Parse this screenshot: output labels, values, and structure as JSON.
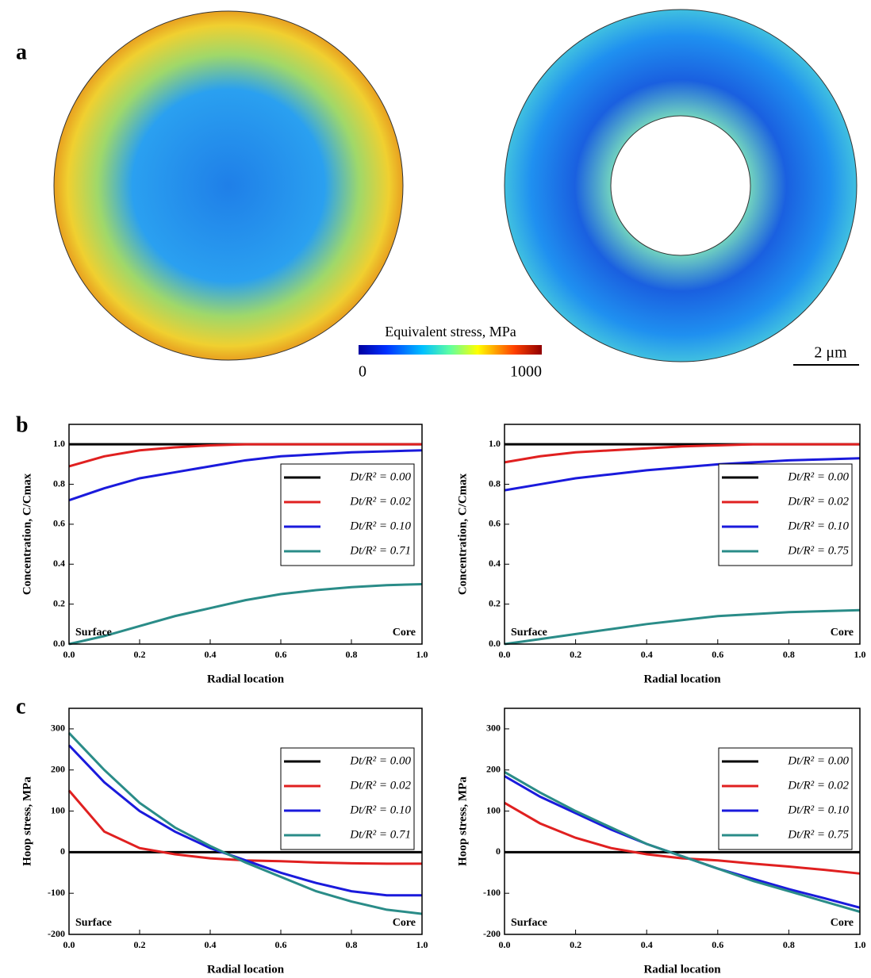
{
  "panels": [
    "a",
    "b",
    "c"
  ],
  "colorbar": {
    "title": "Equivalent stress, MPa",
    "min": 0,
    "max": 1000
  },
  "scale_bar": "2 μm",
  "chart_data": [
    {
      "type": "line",
      "xlabel": "Radial location",
      "ylabel": "Concentration, C/Cmax",
      "annotations": [
        "Surface",
        "Core"
      ],
      "legend": "right",
      "x": [
        0,
        0.1,
        0.2,
        0.3,
        0.4,
        0.5,
        0.6,
        0.7,
        0.8,
        0.9,
        1.0
      ],
      "xlim": [
        0,
        1
      ],
      "xticks": [
        {
          "value": 0,
          "label": "0.0"
        },
        {
          "value": 0.2,
          "label": "0.2"
        },
        {
          "value": 0.4,
          "label": "0.4"
        },
        {
          "value": 0.6,
          "label": "0.6"
        },
        {
          "value": 0.8,
          "label": "0.8"
        },
        {
          "value": 1,
          "label": "1.0"
        }
      ],
      "ylim": [
        0,
        1.1
      ],
      "yticks": [
        {
          "value": 0,
          "label": "0.0"
        },
        {
          "value": 0.2,
          "label": "0.2"
        },
        {
          "value": 0.4,
          "label": "0.4"
        },
        {
          "value": 0.6,
          "label": "0.6"
        },
        {
          "value": 0.8,
          "label": "0.8"
        },
        {
          "value": 1,
          "label": "1.0"
        }
      ],
      "series": [
        {
          "name": "Dt/R² = 0.00",
          "color": "#000000",
          "values": [
            1,
            1,
            1,
            1,
            1,
            1,
            1,
            1,
            1,
            1,
            1
          ]
        },
        {
          "name": "Dt/R² = 0.02",
          "color": "#e02020",
          "values": [
            0.89,
            0.94,
            0.97,
            0.985,
            0.995,
            1,
            1,
            1,
            1,
            1,
            1
          ]
        },
        {
          "name": "Dt/R² = 0.10",
          "color": "#1a1adc",
          "values": [
            0.72,
            0.78,
            0.83,
            0.86,
            0.89,
            0.92,
            0.94,
            0.95,
            0.96,
            0.965,
            0.97
          ]
        },
        {
          "name": "Dt/R² = 0.71",
          "color": "#2a8c88",
          "values": [
            0,
            0.04,
            0.09,
            0.14,
            0.18,
            0.22,
            0.25,
            0.27,
            0.285,
            0.295,
            0.3
          ]
        }
      ]
    },
    {
      "type": "line",
      "xlabel": "Radial location",
      "ylabel": "Concentration, C/Cmax",
      "annotations": [
        "Surface",
        "Core"
      ],
      "legend": "right",
      "x": [
        0,
        0.1,
        0.2,
        0.3,
        0.4,
        0.5,
        0.6,
        0.7,
        0.8,
        0.9,
        1.0
      ],
      "xlim": [
        0,
        1
      ],
      "xticks": [
        {
          "value": 0,
          "label": "0.0"
        },
        {
          "value": 0.2,
          "label": "0.2"
        },
        {
          "value": 0.4,
          "label": "0.4"
        },
        {
          "value": 0.6,
          "label": "0.6"
        },
        {
          "value": 0.8,
          "label": "0.8"
        },
        {
          "value": 1,
          "label": "1.0"
        }
      ],
      "ylim": [
        0,
        1.1
      ],
      "yticks": [
        {
          "value": 0,
          "label": "0.0"
        },
        {
          "value": 0.2,
          "label": "0.2"
        },
        {
          "value": 0.4,
          "label": "0.4"
        },
        {
          "value": 0.6,
          "label": "0.6"
        },
        {
          "value": 0.8,
          "label": "0.8"
        },
        {
          "value": 1,
          "label": "1.0"
        }
      ],
      "series": [
        {
          "name": "Dt/R² = 0.00",
          "color": "#000000",
          "values": [
            1,
            1,
            1,
            1,
            1,
            1,
            1,
            1,
            1,
            1,
            1
          ]
        },
        {
          "name": "Dt/R² = 0.02",
          "color": "#e02020",
          "values": [
            0.91,
            0.94,
            0.96,
            0.97,
            0.98,
            0.99,
            0.995,
            1,
            1,
            1,
            1
          ]
        },
        {
          "name": "Dt/R² = 0.10",
          "color": "#1a1adc",
          "values": [
            0.77,
            0.8,
            0.83,
            0.85,
            0.87,
            0.885,
            0.9,
            0.91,
            0.92,
            0.925,
            0.93
          ]
        },
        {
          "name": "Dt/R² = 0.75",
          "color": "#2a8c88",
          "values": [
            0,
            0.025,
            0.05,
            0.075,
            0.1,
            0.12,
            0.14,
            0.15,
            0.16,
            0.165,
            0.17
          ]
        }
      ]
    },
    {
      "type": "line",
      "xlabel": "Radial location",
      "ylabel": "Hoop stress, MPa",
      "annotations": [
        "Surface",
        "Core"
      ],
      "legend": "right",
      "x": [
        0,
        0.1,
        0.2,
        0.3,
        0.4,
        0.5,
        0.6,
        0.7,
        0.8,
        0.9,
        1.0
      ],
      "xlim": [
        0,
        1
      ],
      "xticks": [
        {
          "value": 0,
          "label": "0.0"
        },
        {
          "value": 0.2,
          "label": "0.2"
        },
        {
          "value": 0.4,
          "label": "0.4"
        },
        {
          "value": 0.6,
          "label": "0.6"
        },
        {
          "value": 0.8,
          "label": "0.8"
        },
        {
          "value": 1,
          "label": "1.0"
        }
      ],
      "ylim": [
        -200,
        350
      ],
      "yticks": [
        -200,
        -100,
        0,
        100,
        200,
        300
      ],
      "series": [
        {
          "name": "Dt/R² = 0.00",
          "color": "#000000",
          "values": [
            0,
            0,
            0,
            0,
            0,
            0,
            0,
            0,
            0,
            0,
            0
          ]
        },
        {
          "name": "Dt/R² = 0.02",
          "color": "#e02020",
          "values": [
            150,
            50,
            10,
            -5,
            -15,
            -20,
            -22,
            -25,
            -27,
            -28,
            -28
          ]
        },
        {
          "name": "Dt/R² = 0.10",
          "color": "#1a1adc",
          "values": [
            260,
            170,
            100,
            50,
            10,
            -20,
            -50,
            -75,
            -95,
            -105,
            -105
          ]
        },
        {
          "name": "Dt/R² = 0.71",
          "color": "#2a8c88",
          "values": [
            290,
            200,
            120,
            60,
            15,
            -25,
            -60,
            -95,
            -120,
            -140,
            -150
          ]
        }
      ]
    },
    {
      "type": "line",
      "xlabel": "Radial location",
      "ylabel": "Hoop stress, MPa",
      "annotations": [
        "Surface",
        "Core"
      ],
      "legend": "right",
      "x": [
        0,
        0.1,
        0.2,
        0.3,
        0.4,
        0.5,
        0.6,
        0.7,
        0.8,
        0.9,
        1.0
      ],
      "xlim": [
        0,
        1
      ],
      "xticks": [
        {
          "value": 0,
          "label": "0.0"
        },
        {
          "value": 0.2,
          "label": "0.2"
        },
        {
          "value": 0.4,
          "label": "0.4"
        },
        {
          "value": 0.6,
          "label": "0.6"
        },
        {
          "value": 0.8,
          "label": "0.8"
        },
        {
          "value": 1,
          "label": "1.0"
        }
      ],
      "ylim": [
        -200,
        350
      ],
      "yticks": [
        -200,
        -100,
        0,
        100,
        200,
        300
      ],
      "series": [
        {
          "name": "Dt/R² = 0.00",
          "color": "#000000",
          "values": [
            0,
            0,
            0,
            0,
            0,
            0,
            0,
            0,
            0,
            0,
            0
          ]
        },
        {
          "name": "Dt/R² = 0.02",
          "color": "#e02020",
          "values": [
            120,
            70,
            35,
            10,
            -5,
            -15,
            -20,
            -28,
            -35,
            -43,
            -52
          ]
        },
        {
          "name": "Dt/R² = 0.10",
          "color": "#1a1adc",
          "values": [
            185,
            135,
            95,
            55,
            20,
            -10,
            -40,
            -65,
            -90,
            -112,
            -135
          ]
        },
        {
          "name": "Dt/R² = 0.75",
          "color": "#2a8c88",
          "values": [
            195,
            145,
            100,
            60,
            20,
            -10,
            -40,
            -70,
            -95,
            -120,
            -145
          ]
        }
      ]
    }
  ]
}
